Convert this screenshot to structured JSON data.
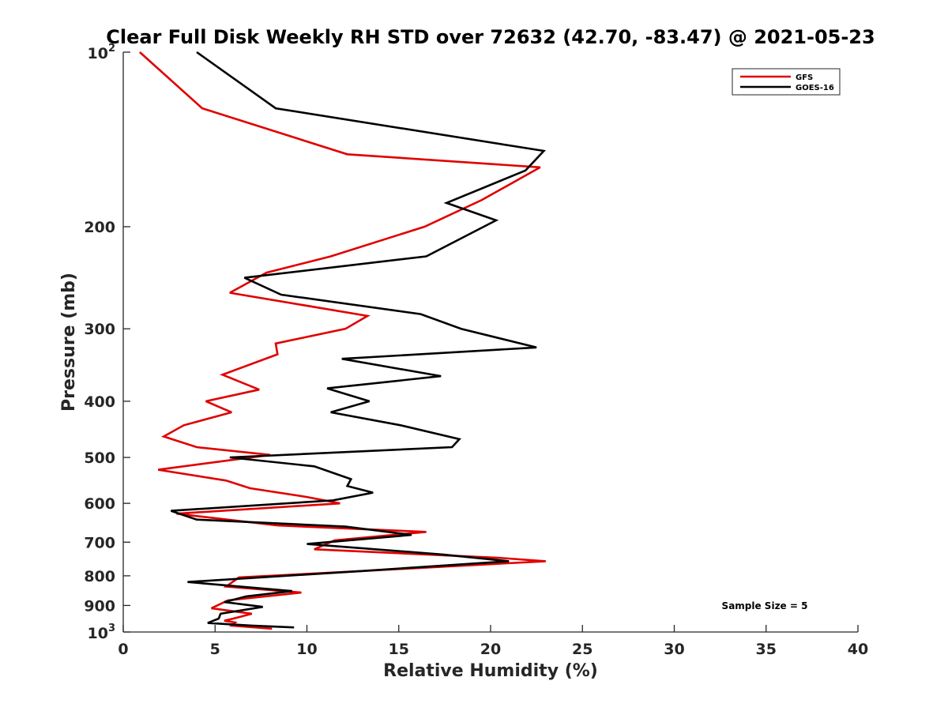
{
  "chart_data": {
    "type": "line",
    "title": "Clear Full Disk Weekly RH STD over 72632 (42.70, -83.47) @ 2021-05-23",
    "xlabel": "Relative Humidity (%)",
    "ylabel": "Pressure (mb)",
    "xlim": [
      0,
      40
    ],
    "ylim": [
      100,
      1000
    ],
    "y_scale": "log",
    "y_reversed": true,
    "x_ticks": [
      0,
      5,
      10,
      15,
      20,
      25,
      30,
      35,
      40
    ],
    "x_tick_labels": [
      "0",
      "5",
      "10",
      "15",
      "20",
      "25",
      "30",
      "35",
      "40"
    ],
    "y_ticks": [
      200,
      300,
      400,
      500,
      600,
      700,
      800,
      900
    ],
    "y_tick_labels": [
      "200",
      "300",
      "400",
      "500",
      "600",
      "700",
      "800",
      "900"
    ],
    "y_edge_ticks": [
      {
        "value": 100,
        "base": "10",
        "exp": "2"
      },
      {
        "value": 1000,
        "base": "10",
        "exp": "3"
      }
    ],
    "legend_position": "top-right",
    "grid": false,
    "annotation": "Sample Size = 5",
    "series": [
      {
        "name": "GFS",
        "color": "#e00000",
        "points": [
          [
            0.9,
            100
          ],
          [
            4.3,
            125
          ],
          [
            12.2,
            150
          ],
          [
            22.7,
            158
          ],
          [
            19.5,
            180
          ],
          [
            16.4,
            200
          ],
          [
            11.3,
            225
          ],
          [
            7.8,
            240
          ],
          [
            5.8,
            260
          ],
          [
            13.3,
            285
          ],
          [
            12.1,
            300
          ],
          [
            8.3,
            318
          ],
          [
            8.4,
            332
          ],
          [
            5.4,
            360
          ],
          [
            7.4,
            382
          ],
          [
            4.5,
            400
          ],
          [
            5.9,
            418
          ],
          [
            3.3,
            440
          ],
          [
            2.2,
            460
          ],
          [
            4.0,
            480
          ],
          [
            8.0,
            495
          ],
          [
            1.9,
            525
          ],
          [
            5.6,
            548
          ],
          [
            6.9,
            565
          ],
          [
            10.0,
            585
          ],
          [
            11.8,
            600
          ],
          [
            2.9,
            625
          ],
          [
            8.4,
            655
          ],
          [
            16.5,
            672
          ],
          [
            11.5,
            695
          ],
          [
            10.4,
            720
          ],
          [
            20.5,
            745
          ],
          [
            23.0,
            755
          ],
          [
            13.0,
            785
          ],
          [
            6.3,
            805
          ],
          [
            5.6,
            835
          ],
          [
            9.7,
            855
          ],
          [
            5.7,
            882
          ],
          [
            4.8,
            910
          ],
          [
            7.0,
            930
          ],
          [
            6.0,
            948
          ],
          [
            5.5,
            956
          ],
          [
            6.1,
            963
          ],
          [
            5.9,
            975
          ],
          [
            8.1,
            987
          ]
        ]
      },
      {
        "name": "GOES-16",
        "color": "#000000",
        "points": [
          [
            4.0,
            100
          ],
          [
            8.3,
            125
          ],
          [
            22.9,
            148
          ],
          [
            21.9,
            160
          ],
          [
            17.6,
            182
          ],
          [
            20.3,
            195
          ],
          [
            16.5,
            225
          ],
          [
            6.6,
            245
          ],
          [
            8.6,
            262
          ],
          [
            16.2,
            283
          ],
          [
            18.4,
            300
          ],
          [
            22.5,
            323
          ],
          [
            11.9,
            338
          ],
          [
            17.3,
            362
          ],
          [
            11.1,
            380
          ],
          [
            13.4,
            400
          ],
          [
            11.3,
            418
          ],
          [
            15.1,
            440
          ],
          [
            18.3,
            465
          ],
          [
            17.9,
            480
          ],
          [
            5.8,
            500
          ],
          [
            10.4,
            518
          ],
          [
            12.4,
            545
          ],
          [
            12.2,
            560
          ],
          [
            13.6,
            575
          ],
          [
            11.4,
            593
          ],
          [
            2.6,
            618
          ],
          [
            4.0,
            640
          ],
          [
            12.1,
            658
          ],
          [
            15.7,
            680
          ],
          [
            10.0,
            705
          ],
          [
            17.4,
            735
          ],
          [
            21.0,
            755
          ],
          [
            13.0,
            785
          ],
          [
            3.5,
            820
          ],
          [
            9.2,
            850
          ],
          [
            6.7,
            868
          ],
          [
            5.5,
            888
          ],
          [
            7.6,
            905
          ],
          [
            5.3,
            930
          ],
          [
            5.2,
            948
          ],
          [
            4.6,
            965
          ],
          [
            7.0,
            975
          ],
          [
            9.3,
            982
          ]
        ]
      }
    ]
  }
}
